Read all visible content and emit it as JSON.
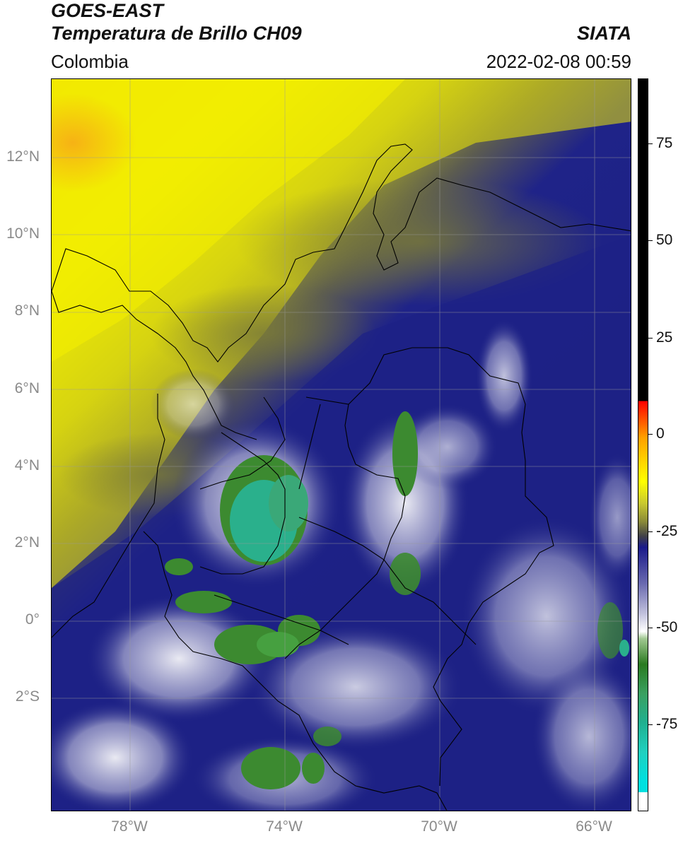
{
  "header": {
    "satellite": "GOES-EAST",
    "product": "Temperatura de Brillo CH09",
    "organization": "SIATA",
    "region": "Colombia",
    "datetime": "2022-02-08 00:59"
  },
  "map": {
    "lat_labels": [
      "12°N",
      "10°N",
      "8°N",
      "6°N",
      "4°N",
      "2°N",
      "0°",
      "2°S"
    ],
    "lon_labels": [
      "78°W",
      "74°W",
      "70°W",
      "66°W"
    ],
    "colors": {
      "warm_yellow": "#f4f000",
      "olive": "#8a8a2a",
      "gray_transition": "#5a5a58",
      "navy": "#1c2184",
      "white_cloud": "#f2f2f6",
      "green_cold": "#3c8a30",
      "teal_coldest": "#2ab08c",
      "orange_hot": "#f7a818"
    }
  },
  "colorbar": {
    "tick_labels": [
      "75",
      "50",
      "25",
      "0",
      "-25",
      "-50",
      "-75"
    ],
    "stops": [
      "#000000",
      "#ff0000",
      "#ffa000",
      "#ffff00",
      "#9a9a30",
      "#404040",
      "#1a1a8a",
      "#ffffff",
      "#2a7a20",
      "#20b090",
      "#00e0e0",
      "#ffffff"
    ]
  }
}
